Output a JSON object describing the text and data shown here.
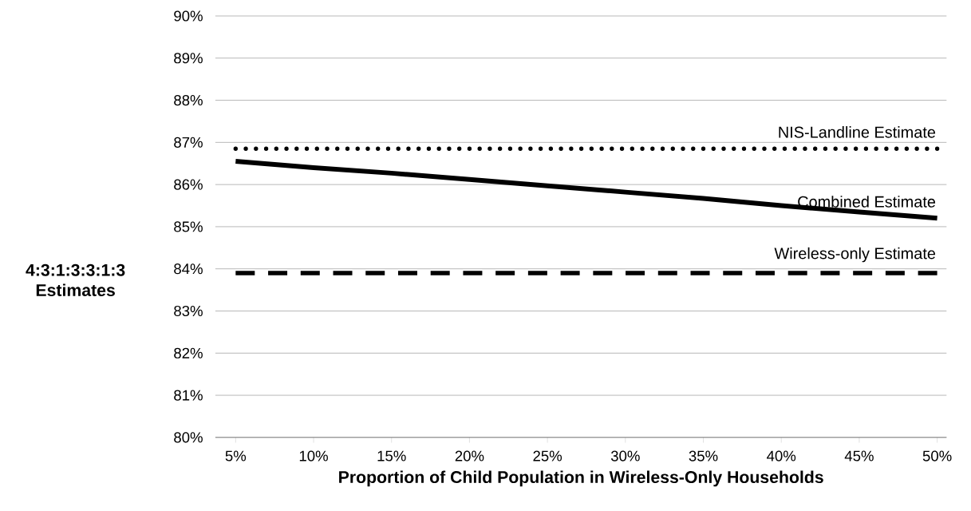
{
  "chart_data": {
    "type": "line",
    "xlabel": "Proportion of Child Population in Wireless-Only Households",
    "ylabel": "4:3:1:3:3:1:3 Estimates",
    "x": [
      5,
      10,
      15,
      20,
      25,
      30,
      35,
      40,
      45,
      50
    ],
    "series": [
      {
        "name": "NIS-Landline Estimate",
        "color": "#000000",
        "line_style": "dotted",
        "values": [
          86.85,
          86.85,
          86.85,
          86.85,
          86.85,
          86.85,
          86.85,
          86.85,
          86.85,
          86.85
        ]
      },
      {
        "name": "Combined Estimate",
        "color": "#000000",
        "line_style": "solid",
        "values": [
          86.55,
          86.4,
          86.27,
          86.12,
          85.97,
          85.82,
          85.67,
          85.5,
          85.35,
          85.2
        ]
      },
      {
        "name": "Wireless-only Estimate",
        "color": "#000000",
        "line_style": "dashed",
        "values": [
          83.9,
          83.9,
          83.9,
          83.9,
          83.9,
          83.9,
          83.9,
          83.9,
          83.9,
          83.9
        ]
      }
    ],
    "xlim": [
      3.7,
      50.6
    ],
    "ylim": [
      80,
      90
    ],
    "xticks": [
      {
        "value": 5,
        "label": "5%"
      },
      {
        "value": 10,
        "label": "10%"
      },
      {
        "value": 15,
        "label": "15%"
      },
      {
        "value": 20,
        "label": "20%"
      },
      {
        "value": 25,
        "label": "25%"
      },
      {
        "value": 30,
        "label": "30%"
      },
      {
        "value": 35,
        "label": "35%"
      },
      {
        "value": 40,
        "label": "40%"
      },
      {
        "value": 45,
        "label": "45%"
      },
      {
        "value": 50,
        "label": "50%"
      }
    ],
    "yticks": [
      {
        "value": 80,
        "label": "80%"
      },
      {
        "value": 81,
        "label": "81%"
      },
      {
        "value": 82,
        "label": "82%"
      },
      {
        "value": 83,
        "label": "83%"
      },
      {
        "value": 84,
        "label": "84%"
      },
      {
        "value": 85,
        "label": "85%"
      },
      {
        "value": 86,
        "label": "86%"
      },
      {
        "value": 87,
        "label": "87%"
      },
      {
        "value": 88,
        "label": "88%"
      },
      {
        "value": 89,
        "label": "89%"
      },
      {
        "value": 90,
        "label": "90%"
      }
    ],
    "grid": "y",
    "legend": false
  }
}
